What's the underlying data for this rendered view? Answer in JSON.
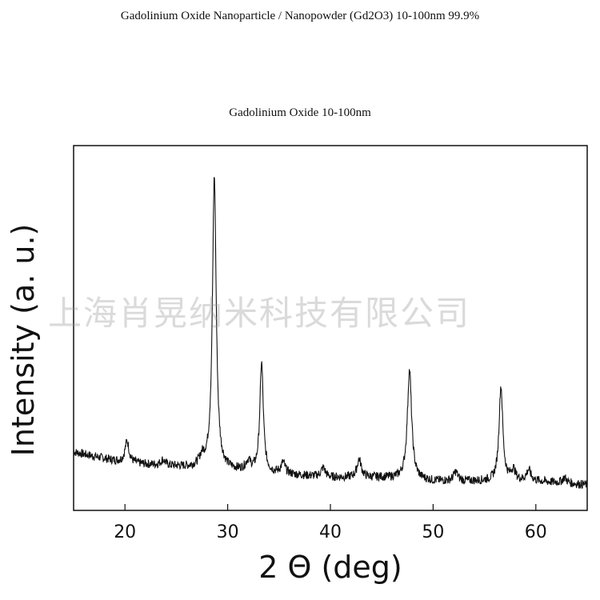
{
  "page": {
    "title": "Gadolinium Oxide Nanoparticle / Nanopowder (Gd2O3) 10-100nm  99.9%",
    "watermark": "上海肖晃纳米科技有限公司"
  },
  "chart_data": {
    "type": "line",
    "title": "Gadolinium Oxide 10-100nm",
    "xlabel": "2 Θ (deg)",
    "ylabel": "Intensity (a. u.)",
    "xlim": [
      15,
      65
    ],
    "ylim": [
      0,
      100
    ],
    "xticks": [
      20,
      30,
      40,
      50,
      60
    ],
    "show_y_ticks": false,
    "grid": false,
    "line_color": "#111111",
    "baseline": {
      "x": [
        15,
        20,
        25,
        30,
        35,
        40,
        45,
        50,
        55,
        60,
        65
      ],
      "y": [
        16,
        13,
        12,
        11,
        10,
        9,
        9,
        8,
        8,
        8,
        7
      ]
    },
    "peaks": [
      {
        "x": 20.2,
        "height": 6,
        "width": 0.25
      },
      {
        "x": 23.7,
        "height": 1.5,
        "width": 0.25
      },
      {
        "x": 27.5,
        "height": 2.5,
        "width": 0.3
      },
      {
        "x": 28.7,
        "height": 80,
        "width": 0.22
      },
      {
        "x": 32.0,
        "height": 2.5,
        "width": 0.3
      },
      {
        "x": 33.3,
        "height": 30,
        "width": 0.2
      },
      {
        "x": 35.4,
        "height": 3,
        "width": 0.25
      },
      {
        "x": 39.3,
        "height": 2.5,
        "width": 0.25
      },
      {
        "x": 42.8,
        "height": 5,
        "width": 0.25
      },
      {
        "x": 47.7,
        "height": 30,
        "width": 0.25
      },
      {
        "x": 52.2,
        "height": 2.5,
        "width": 0.25
      },
      {
        "x": 56.6,
        "height": 26,
        "width": 0.22
      },
      {
        "x": 57.8,
        "height": 3,
        "width": 0.25
      },
      {
        "x": 59.3,
        "height": 3,
        "width": 0.25
      },
      {
        "x": 62.8,
        "height": 1.5,
        "width": 0.25
      }
    ]
  }
}
